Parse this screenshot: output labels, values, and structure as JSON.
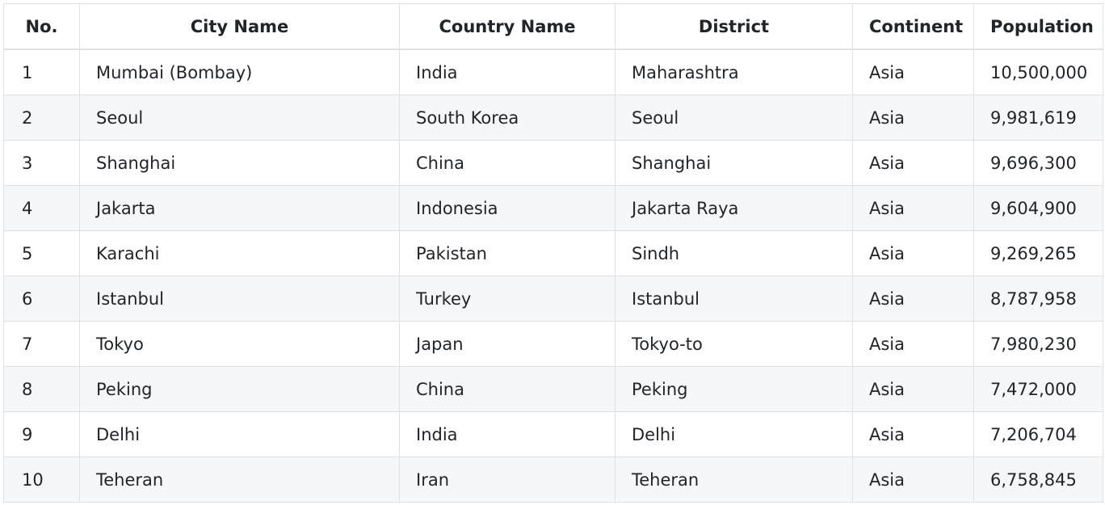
{
  "table": {
    "headers": {
      "no": "No.",
      "city": "City Name",
      "country": "Country Name",
      "district": "District",
      "continent": "Continent",
      "population": "Population"
    },
    "rows": [
      {
        "no": "1",
        "city": "Mumbai (Bombay)",
        "country": "India",
        "district": "Maharashtra",
        "continent": "Asia",
        "population": "10,500,000"
      },
      {
        "no": "2",
        "city": "Seoul",
        "country": "South Korea",
        "district": "Seoul",
        "continent": "Asia",
        "population": "9,981,619"
      },
      {
        "no": "3",
        "city": "Shanghai",
        "country": "China",
        "district": "Shanghai",
        "continent": "Asia",
        "population": "9,696,300"
      },
      {
        "no": "4",
        "city": "Jakarta",
        "country": "Indonesia",
        "district": "Jakarta Raya",
        "continent": "Asia",
        "population": "9,604,900"
      },
      {
        "no": "5",
        "city": "Karachi",
        "country": "Pakistan",
        "district": "Sindh",
        "continent": "Asia",
        "population": "9,269,265"
      },
      {
        "no": "6",
        "city": "Istanbul",
        "country": "Turkey",
        "district": "Istanbul",
        "continent": "Asia",
        "population": "8,787,958"
      },
      {
        "no": "7",
        "city": "Tokyo",
        "country": "Japan",
        "district": "Tokyo-to",
        "continent": "Asia",
        "population": "7,980,230"
      },
      {
        "no": "8",
        "city": "Peking",
        "country": "China",
        "district": "Peking",
        "continent": "Asia",
        "population": "7,472,000"
      },
      {
        "no": "9",
        "city": "Delhi",
        "country": "India",
        "district": "Delhi",
        "continent": "Asia",
        "population": "7,206,704"
      },
      {
        "no": "10",
        "city": "Teheran",
        "country": "Iran",
        "district": "Teheran",
        "continent": "Asia",
        "population": "6,758,845"
      }
    ]
  }
}
